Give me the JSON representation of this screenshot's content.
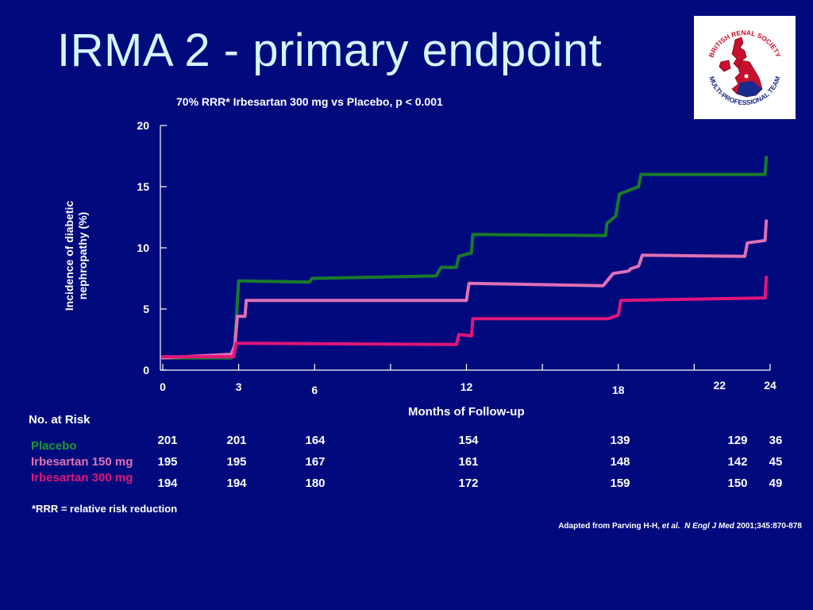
{
  "slide": {
    "title": "IRMA 2 - primary endpoint",
    "footnote": "*RRR = relative risk  reduction",
    "citation_prefix": "Adapted from Parving H-H, ",
    "citation_etal": "et al.",
    "citation_journal": "N Engl J Med",
    "citation_suffix": " 2001;345:870-878",
    "background_color": "#000a7c",
    "title_color": "#d4f6ff"
  },
  "logo": {
    "icon": "british-renal-society-logo",
    "text_top": "BRITISH RENAL SOCIETY",
    "text_bottom": "MULTI-PROFESSIONAL TEAM"
  },
  "chart_data": {
    "type": "line",
    "title": "70% RRR* Irbesartan 300 mg vs Placebo, p < 0.001",
    "xlabel": "Months of Follow-up",
    "ylabel": "Incidence of diabetic nephropathy (%)",
    "xlim": [
      0,
      24
    ],
    "ylim": [
      0,
      20
    ],
    "x_ticks": [
      0,
      3,
      6,
      9,
      12,
      15,
      18,
      21,
      24
    ],
    "x_tick_labels": [
      {
        "x": 0,
        "label": "0"
      },
      {
        "x": 3,
        "label": "3"
      },
      {
        "x": 6,
        "label": "6"
      },
      {
        "x": 12,
        "label": "12"
      },
      {
        "x": 18,
        "label": "18"
      },
      {
        "x": 22,
        "label": "22"
      },
      {
        "x": 24,
        "label": "24"
      }
    ],
    "y_ticks": [
      0,
      5,
      10,
      15,
      20
    ],
    "grid": false,
    "series": [
      {
        "name": "Placebo",
        "color": "#1a7a2a",
        "points": [
          [
            0,
            1
          ],
          [
            2.7,
            1
          ],
          [
            2.85,
            2.2
          ],
          [
            3.0,
            7.3
          ],
          [
            5.8,
            7.2
          ],
          [
            5.9,
            7.5
          ],
          [
            10.8,
            7.7
          ],
          [
            11.0,
            8.4
          ],
          [
            11.6,
            8.4
          ],
          [
            11.7,
            9.3
          ],
          [
            12.2,
            9.6
          ],
          [
            12.25,
            11.1
          ],
          [
            17.5,
            11.0
          ],
          [
            17.55,
            12.0
          ],
          [
            17.9,
            12.6
          ],
          [
            18.05,
            14.4
          ],
          [
            18.8,
            15.0
          ],
          [
            18.9,
            16.0
          ],
          [
            23.8,
            16.0
          ],
          [
            23.85,
            17.4
          ]
        ]
      },
      {
        "name": "Irbesartan 150 mg",
        "color": "#e070b6",
        "points": [
          [
            0,
            1
          ],
          [
            2.7,
            1.3
          ],
          [
            2.85,
            2.0
          ],
          [
            2.95,
            4.4
          ],
          [
            3.25,
            4.4
          ],
          [
            3.3,
            5.7
          ],
          [
            12.0,
            5.7
          ],
          [
            12.1,
            7.1
          ],
          [
            17.4,
            6.9
          ],
          [
            17.8,
            7.9
          ],
          [
            18.4,
            8.1
          ],
          [
            18.5,
            8.3
          ],
          [
            18.8,
            8.5
          ],
          [
            18.95,
            9.4
          ],
          [
            23.0,
            9.3
          ],
          [
            23.1,
            10.4
          ],
          [
            23.8,
            10.6
          ],
          [
            23.85,
            12.2
          ]
        ]
      },
      {
        "name": "Irbesartan 300 mg",
        "color": "#e0157a",
        "points": [
          [
            0,
            1.1
          ],
          [
            2.8,
            1.1
          ],
          [
            2.9,
            2.2
          ],
          [
            11.6,
            2.1
          ],
          [
            11.7,
            2.9
          ],
          [
            12.2,
            2.8
          ],
          [
            12.25,
            4.2
          ],
          [
            17.6,
            4.2
          ],
          [
            18.0,
            4.5
          ],
          [
            18.1,
            5.7
          ],
          [
            23.8,
            5.9
          ],
          [
            23.85,
            7.6
          ]
        ]
      }
    ]
  },
  "no_at_risk": {
    "title": "No. at Risk",
    "columns": [
      {
        "x": 0,
        "label": "0"
      },
      {
        "x": 3,
        "label": "3"
      },
      {
        "x": 6,
        "label": "6"
      },
      {
        "x": 12,
        "label": "12"
      },
      {
        "x": 18,
        "label": "18"
      },
      {
        "x": 22,
        "label": "22"
      },
      {
        "x": 24,
        "label": "24"
      }
    ],
    "rows": [
      {
        "label": "Placebo",
        "color": "#1a9a30",
        "values": [
          "201",
          "201",
          "164",
          "154",
          "139",
          "129",
          "36"
        ]
      },
      {
        "label": "Irbesartan 150 mg",
        "color": "#e070b6",
        "values": [
          "195",
          "195",
          "167",
          "161",
          "148",
          "142",
          "45"
        ]
      },
      {
        "label": "Irbesartan 300 mg",
        "color": "#e0157a",
        "values": [
          "194",
          "194",
          "180",
          "172",
          "159",
          "150",
          "49"
        ]
      }
    ]
  }
}
